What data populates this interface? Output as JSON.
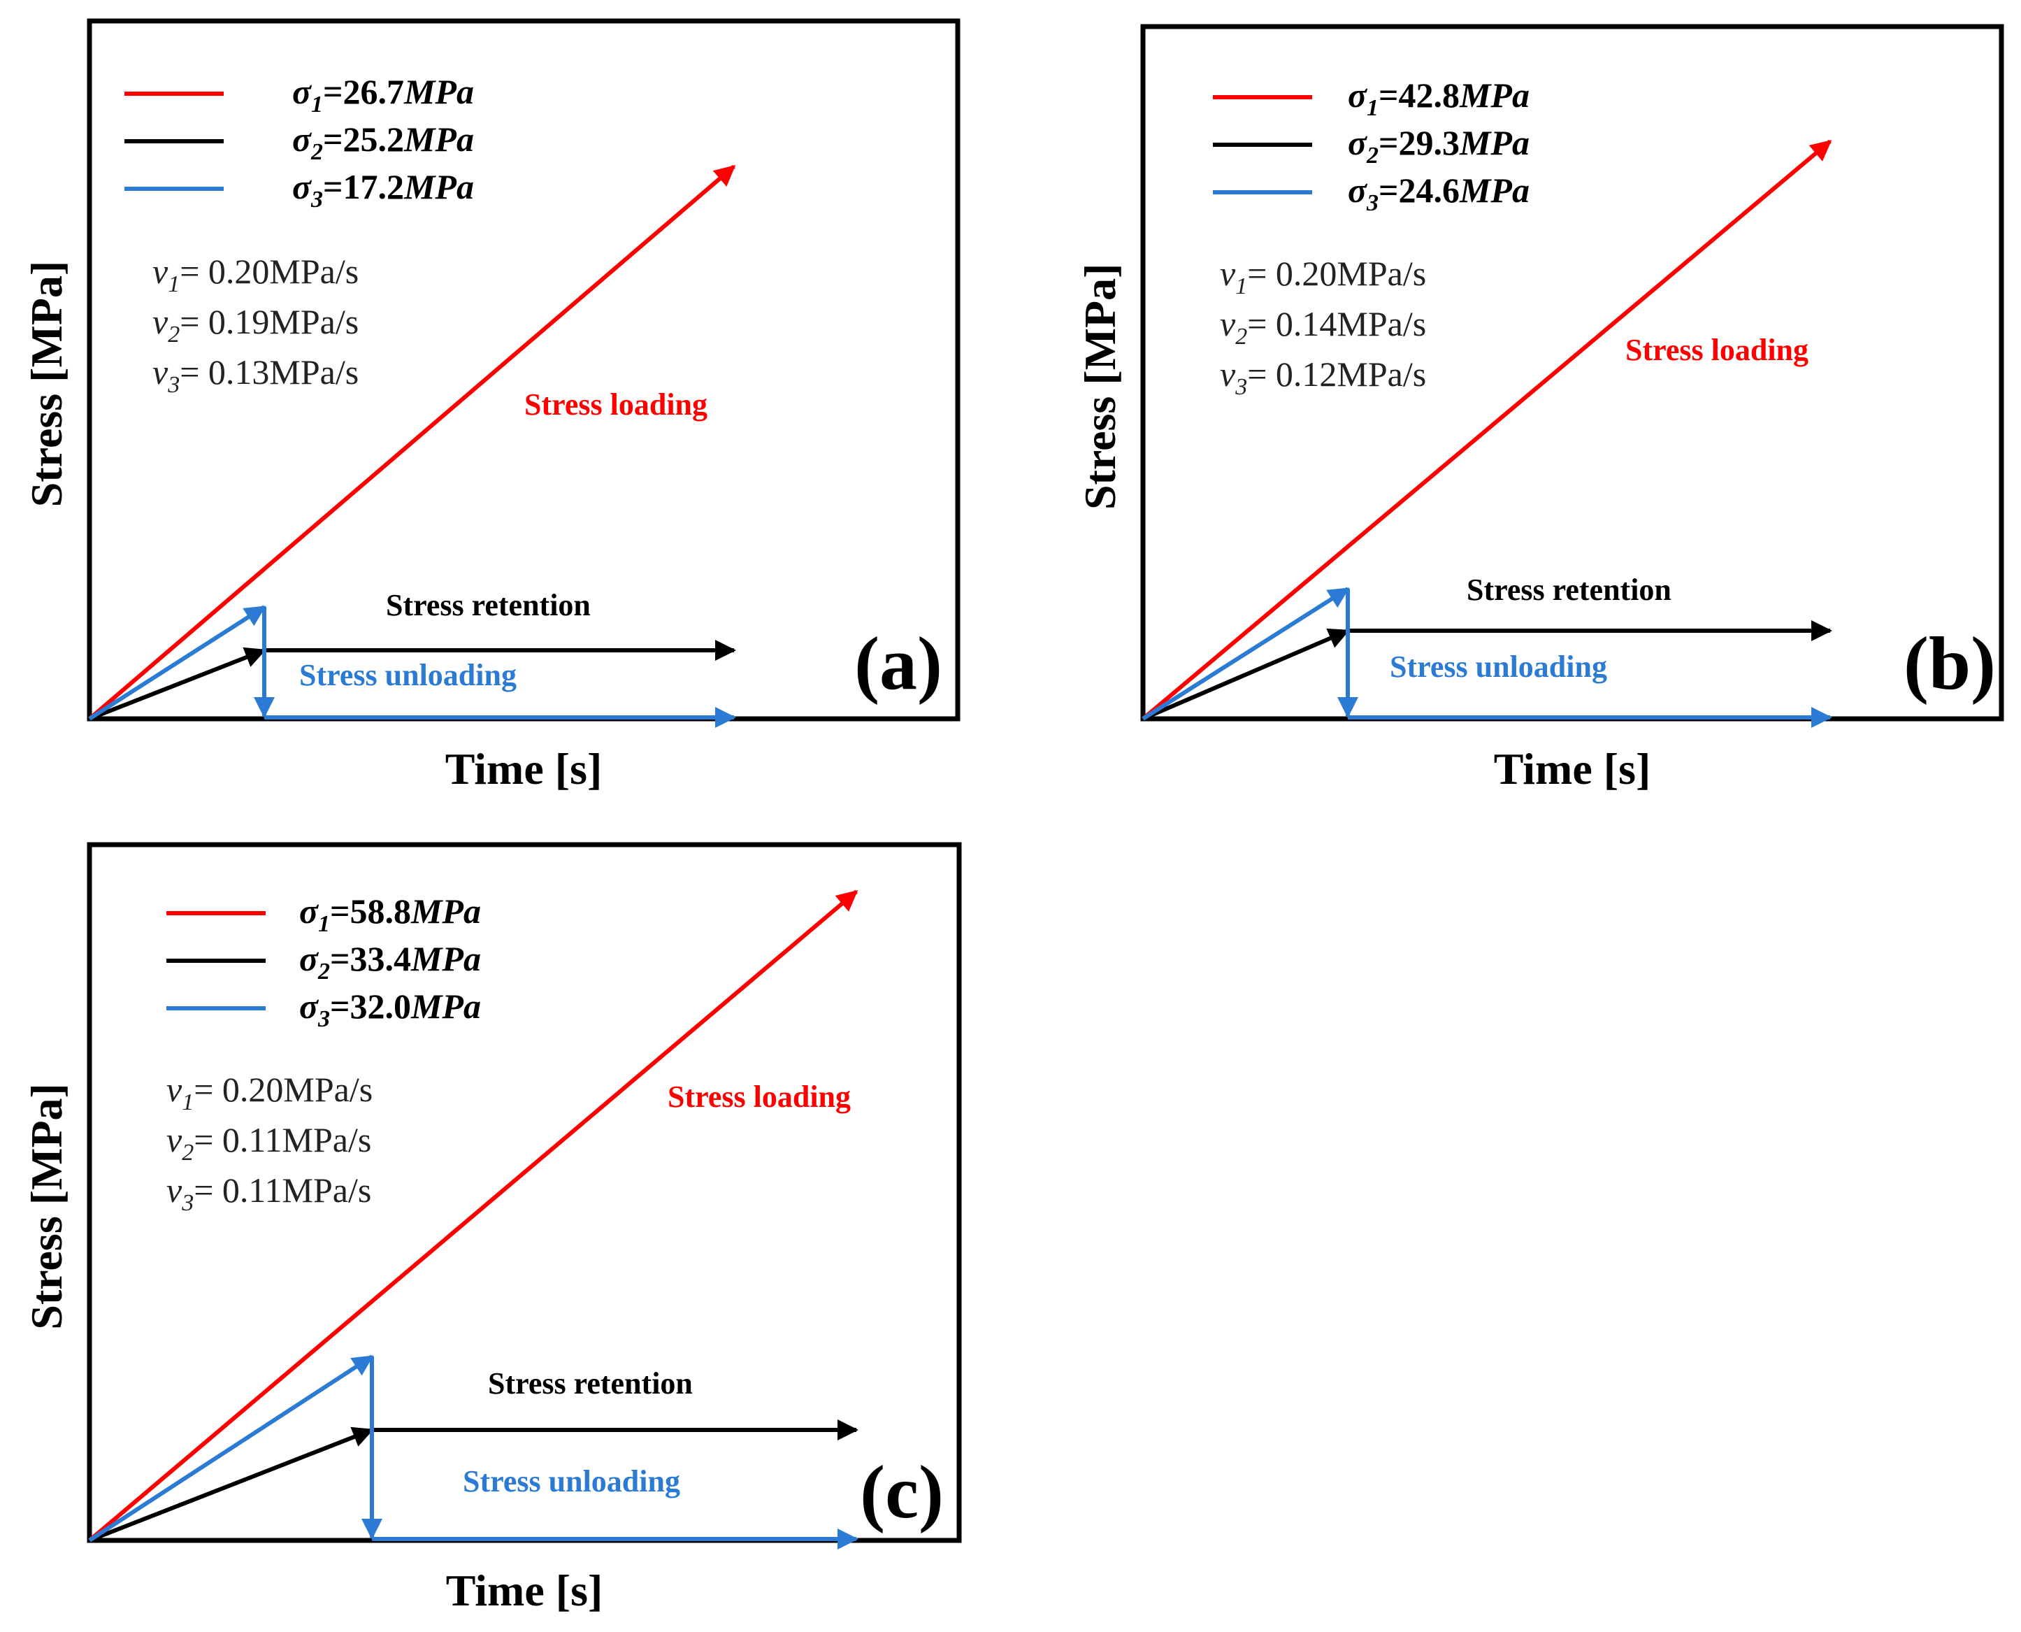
{
  "figure": {
    "panels": [
      {
        "id": "a",
        "label": "(a)",
        "xlabel": "Time [s]",
        "ylabel": "Stress [MPa]",
        "legend": [
          {
            "sym": "σ",
            "sub": "1",
            "value": "=26.7",
            "unit": "MPa",
            "color": "#ff0000"
          },
          {
            "sym": "σ",
            "sub": "2",
            "value": "=25.2",
            "unit": "MPa",
            "color": "#000000"
          },
          {
            "sym": "σ",
            "sub": "3",
            "value": "=17.2",
            "unit": "MPa",
            "color": "#2b7bd4"
          }
        ],
        "rates": [
          {
            "sym": "v",
            "sub": "1",
            "text": "= 0.20MPa/s"
          },
          {
            "sym": "v",
            "sub": "2",
            "text": "= 0.19MPa/s"
          },
          {
            "sym": "v",
            "sub": "3",
            "text": "= 0.13MPa/s"
          }
        ],
        "phases": {
          "loading": "Stress loading",
          "retention": "Stress retention",
          "unloading": "Stress unloading"
        }
      },
      {
        "id": "b",
        "label": "(b)",
        "xlabel": "Time [s]",
        "ylabel": "Stress [MPa]",
        "legend": [
          {
            "sym": "σ",
            "sub": "1",
            "value": "=42.8",
            "unit": "MPa",
            "color": "#ff0000"
          },
          {
            "sym": "σ",
            "sub": "2",
            "value": "=29.3",
            "unit": "MPa",
            "color": "#000000"
          },
          {
            "sym": "σ",
            "sub": "3",
            "value": "=24.6",
            "unit": "MPa",
            "color": "#2b7bd4"
          }
        ],
        "rates": [
          {
            "sym": "v",
            "sub": "1",
            "text": "= 0.20MPa/s"
          },
          {
            "sym": "v",
            "sub": "2",
            "text": "= 0.14MPa/s"
          },
          {
            "sym": "v",
            "sub": "3",
            "text": "= 0.12MPa/s"
          }
        ],
        "phases": {
          "loading": "Stress loading",
          "retention": "Stress retention",
          "unloading": "Stress unloading"
        }
      },
      {
        "id": "c",
        "label": "(c)",
        "xlabel": "Time [s]",
        "ylabel": "Stress [MPa]",
        "legend": [
          {
            "sym": "σ",
            "sub": "1",
            "value": "=58.8",
            "unit": "MPa",
            "color": "#ff0000"
          },
          {
            "sym": "σ",
            "sub": "2",
            "value": "=33.4",
            "unit": "MPa",
            "color": "#000000"
          },
          {
            "sym": "σ",
            "sub": "3",
            "value": "=32.0",
            "unit": "MPa",
            "color": "#2b7bd4"
          }
        ],
        "rates": [
          {
            "sym": "v",
            "sub": "1",
            "text": "= 0.20MPa/s"
          },
          {
            "sym": "v",
            "sub": "2",
            "text": "= 0.11MPa/s"
          },
          {
            "sym": "v",
            "sub": "3",
            "text": "= 0.11MPa/s"
          }
        ],
        "phases": {
          "loading": "Stress loading",
          "retention": "Stress retention",
          "unloading": "Stress unloading"
        }
      }
    ],
    "colors": {
      "red": "#ff0000",
      "black": "#000000",
      "blue": "#2b7bd4",
      "rate_text": "#222222"
    }
  }
}
